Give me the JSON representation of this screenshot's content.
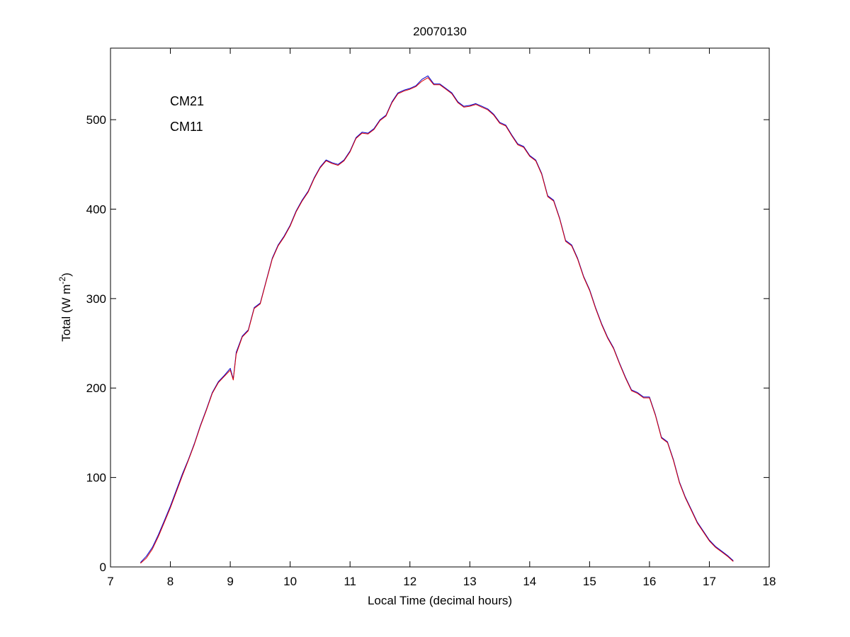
{
  "chart_data": {
    "type": "line",
    "title": "20070130",
    "xlabel": "Local Time (decimal hours)",
    "ylabel_main": "Total (W m",
    "ylabel_exp": "-2",
    "ylabel_close": ")",
    "xlim": [
      7,
      18
    ],
    "ylim": [
      0,
      580
    ],
    "xticks": [
      7,
      8,
      9,
      10,
      11,
      12,
      13,
      14,
      15,
      16,
      17,
      18
    ],
    "yticks": [
      0,
      100,
      200,
      300,
      400,
      500
    ],
    "grid": false,
    "legend_position": "top-left",
    "series": [
      {
        "name": "CM21",
        "color": "#0000cc",
        "x": [
          7.5,
          7.6,
          7.7,
          7.8,
          7.9,
          8.0,
          8.1,
          8.2,
          8.3,
          8.4,
          8.5,
          8.6,
          8.7,
          8.8,
          8.9,
          9.0,
          9.05,
          9.1,
          9.2,
          9.3,
          9.4,
          9.5,
          9.6,
          9.7,
          9.8,
          9.9,
          10.0,
          10.1,
          10.2,
          10.3,
          10.4,
          10.5,
          10.6,
          10.7,
          10.8,
          10.9,
          11.0,
          11.1,
          11.2,
          11.3,
          11.4,
          11.5,
          11.6,
          11.7,
          11.8,
          11.9,
          12.0,
          12.1,
          12.2,
          12.3,
          12.4,
          12.5,
          12.6,
          12.7,
          12.8,
          12.9,
          13.0,
          13.1,
          13.2,
          13.3,
          13.4,
          13.5,
          13.6,
          13.7,
          13.8,
          13.9,
          14.0,
          14.1,
          14.2,
          14.3,
          14.4,
          14.5,
          14.6,
          14.7,
          14.8,
          14.9,
          15.0,
          15.1,
          15.2,
          15.3,
          15.4,
          15.5,
          15.6,
          15.7,
          15.8,
          15.9,
          16.0,
          16.1,
          16.2,
          16.3,
          16.4,
          16.5,
          16.6,
          16.7,
          16.8,
          16.9,
          17.0,
          17.1,
          17.2,
          17.3,
          17.4
        ],
        "y": [
          5,
          12,
          22,
          36,
          52,
          68,
          86,
          104,
          120,
          138,
          158,
          176,
          195,
          207,
          214,
          222,
          210,
          240,
          258,
          265,
          290,
          295,
          320,
          345,
          360,
          370,
          382,
          398,
          410,
          420,
          435,
          447,
          455,
          452,
          450,
          455,
          465,
          480,
          486,
          485,
          490,
          500,
          505,
          520,
          530,
          533,
          535,
          538,
          545,
          549,
          540,
          540,
          535,
          530,
          520,
          515,
          516,
          518,
          515,
          512,
          506,
          497,
          494,
          483,
          473,
          470,
          460,
          455,
          440,
          415,
          410,
          390,
          365,
          360,
          345,
          325,
          310,
          290,
          272,
          257,
          245,
          228,
          212,
          198,
          195,
          190,
          190,
          170,
          145,
          140,
          120,
          95,
          78,
          64,
          50,
          40,
          30,
          23,
          18,
          13,
          7
        ]
      },
      {
        "name": "CM11",
        "color": "#dd0000",
        "x": [
          7.5,
          7.6,
          7.7,
          7.8,
          7.9,
          8.0,
          8.1,
          8.2,
          8.3,
          8.4,
          8.5,
          8.6,
          8.7,
          8.8,
          8.9,
          9.0,
          9.05,
          9.1,
          9.2,
          9.3,
          9.4,
          9.5,
          9.6,
          9.7,
          9.8,
          9.9,
          10.0,
          10.1,
          10.2,
          10.3,
          10.4,
          10.5,
          10.6,
          10.7,
          10.8,
          10.9,
          11.0,
          11.1,
          11.2,
          11.3,
          11.4,
          11.5,
          11.6,
          11.7,
          11.8,
          11.9,
          12.0,
          12.1,
          12.2,
          12.3,
          12.4,
          12.5,
          12.6,
          12.7,
          12.8,
          12.9,
          13.0,
          13.1,
          13.2,
          13.3,
          13.4,
          13.5,
          13.6,
          13.7,
          13.8,
          13.9,
          14.0,
          14.1,
          14.2,
          14.3,
          14.4,
          14.5,
          14.6,
          14.7,
          14.8,
          14.9,
          15.0,
          15.1,
          15.2,
          15.3,
          15.4,
          15.5,
          15.6,
          15.7,
          15.8,
          15.9,
          16.0,
          16.1,
          16.2,
          16.3,
          16.4,
          16.5,
          16.6,
          16.7,
          16.8,
          16.9,
          17.0,
          17.1,
          17.2,
          17.3,
          17.4
        ],
        "y": [
          4,
          10,
          20,
          34,
          50,
          66,
          84,
          102,
          119,
          137,
          157,
          175,
          194,
          206,
          213,
          220,
          209,
          238,
          257,
          264,
          289,
          294,
          319,
          344,
          359,
          369,
          381,
          397,
          409,
          419,
          434,
          446,
          454,
          451,
          449,
          454,
          464,
          479,
          485,
          484,
          489,
          499,
          504,
          519,
          529,
          532,
          534,
          537,
          543,
          547,
          539,
          539,
          534,
          529,
          519,
          514,
          515,
          517,
          514,
          511,
          505,
          496,
          493,
          482,
          472,
          469,
          459,
          454,
          439,
          414,
          409,
          389,
          364,
          359,
          344,
          324,
          309,
          289,
          271,
          256,
          244,
          227,
          211,
          197,
          194,
          189,
          189,
          169,
          144,
          139,
          119,
          94,
          77,
          63,
          49,
          39,
          29,
          22,
          17,
          12,
          6
        ]
      }
    ]
  }
}
